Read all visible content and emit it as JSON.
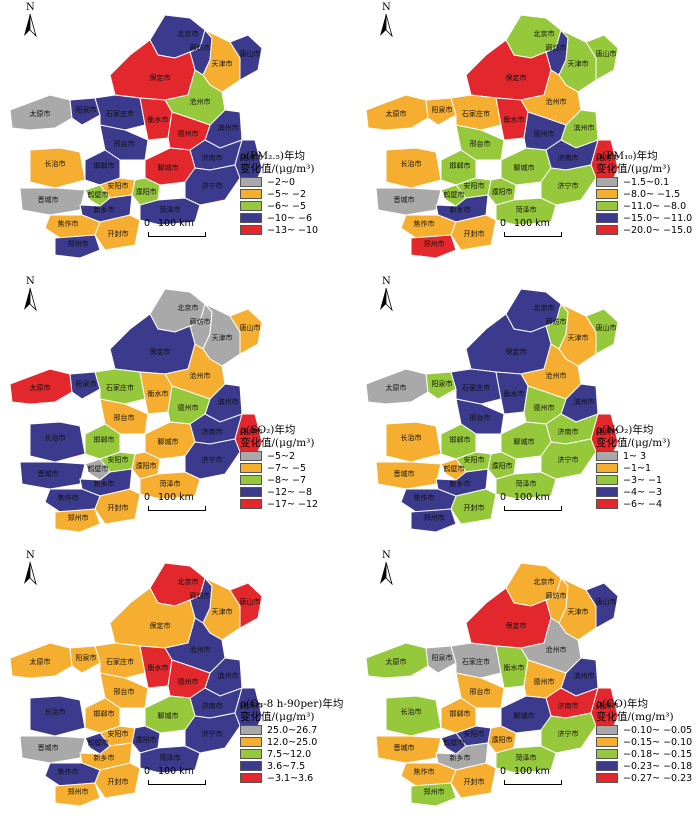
{
  "north_label": "N",
  "scale": {
    "zero": "0",
    "dist": "100 km"
  },
  "colors": {
    "gray": "#aaa9aa",
    "orange": "#f6ae31",
    "green": "#96c83c",
    "navy": "#3b3a8c",
    "red": "#e3282d",
    "border": "#ffffff"
  },
  "panels": [
    {
      "title1": "ρ(PM₂.₅)年均",
      "title2": "变化值/(μg/m³)",
      "legend": [
        "−2~0",
        "−5~ −2",
        "−6~ −5",
        "−10~ −6",
        "−13~ −10"
      ]
    },
    {
      "title1": "ρ(PM₁₀)年均",
      "title2": "变化值/(μg/m³)",
      "legend": [
        "−1.5~0.1",
        "−8.0~ −1.5",
        "−11.0~ −8.0",
        "−15.0~ −11.0",
        "−20.0~ −15.0"
      ]
    },
    {
      "title1": "ρ(SO₂)年均",
      "title2": "变化值/(μg/m³)",
      "legend": [
        "−5~2",
        "−7~ −5",
        "−8~ −7",
        "−12~ −8",
        "−17~ −12"
      ]
    },
    {
      "title1": "ρ(NO₂)年均",
      "title2": "变化值/(μg/m³)",
      "legend": [
        "1~ 3",
        "−1~1",
        "−3~ −1",
        "−4~ −3",
        "−6~ −4"
      ]
    },
    {
      "title1": "ρ(O₃-8 h-90per)年均",
      "title2": "变化值/(μg/m³)",
      "legend": [
        "25.0~26.7",
        "12.0~25.0",
        "7.5~12.0",
        "3.6~7.5",
        "−3.1~3.6"
      ]
    },
    {
      "title1": "ρ(CO)年均",
      "title2": "变化值/(mg/m³)",
      "legend": [
        "−0.10~ −0.05",
        "−0.15~ −0.10",
        "−0.18~ −0.15",
        "−0.23~ −0.18",
        "−0.27~ −0.23"
      ]
    }
  ],
  "cities": [
    "北京市",
    "廊坊市",
    "天津市",
    "唐山市",
    "保定市",
    "沧州市",
    "太原市",
    "阳泉市",
    "石家庄市",
    "衡水市",
    "滨州市",
    "德州市",
    "邢台市",
    "济南市",
    "淄博市",
    "长治市",
    "邯郸市",
    "聊城市",
    "晋城市",
    "安阳市",
    "濮阳市",
    "鹤壁市",
    "新乡市",
    "焦作市",
    "菏泽市",
    "济宁市",
    "郑州市",
    "开封市"
  ],
  "region_colors": [
    [
      "navy",
      "navy",
      "orange",
      "navy",
      "red",
      "green",
      "gray",
      "navy",
      "navy",
      "red",
      "navy",
      "red",
      "navy",
      "navy",
      "navy",
      "orange",
      "navy",
      "red",
      "gray",
      "orange",
      "green",
      "green",
      "navy",
      "orange",
      "navy",
      "navy",
      "navy",
      "orange"
    ],
    [
      "green",
      "navy",
      "green",
      "green",
      "red",
      "orange",
      "orange",
      "orange",
      "orange",
      "red",
      "green",
      "navy",
      "green",
      "navy",
      "red",
      "orange",
      "green",
      "green",
      "gray",
      "green",
      "green",
      "green",
      "navy",
      "orange",
      "green",
      "green",
      "red",
      "orange"
    ],
    [
      "gray",
      "gray",
      "gray",
      "orange",
      "navy",
      "orange",
      "red",
      "navy",
      "green",
      "orange",
      "navy",
      "green",
      "orange",
      "navy",
      "red",
      "navy",
      "green",
      "orange",
      "navy",
      "green",
      "orange",
      "gray",
      "navy",
      "navy",
      "orange",
      "navy",
      "orange",
      "orange"
    ],
    [
      "navy",
      "green",
      "orange",
      "green",
      "navy",
      "orange",
      "gray",
      "green",
      "navy",
      "navy",
      "navy",
      "green",
      "navy",
      "green",
      "red",
      "orange",
      "green",
      "green",
      "orange",
      "green",
      "green",
      "orange",
      "navy",
      "navy",
      "green",
      "green",
      "navy",
      "green"
    ],
    [
      "red",
      "navy",
      "orange",
      "red",
      "orange",
      "navy",
      "orange",
      "orange",
      "orange",
      "red",
      "navy",
      "red",
      "orange",
      "navy",
      "navy",
      "navy",
      "orange",
      "green",
      "gray",
      "orange",
      "navy",
      "navy",
      "orange",
      "navy",
      "navy",
      "navy",
      "orange",
      "orange"
    ],
    [
      "orange",
      "orange",
      "orange",
      "navy",
      "red",
      "gray",
      "green",
      "gray",
      "gray",
      "green",
      "navy",
      "orange",
      "orange",
      "red",
      "red",
      "green",
      "orange",
      "navy",
      "orange",
      "navy",
      "orange",
      "navy",
      "gray",
      "orange",
      "green",
      "green",
      "green",
      "orange"
    ]
  ]
}
